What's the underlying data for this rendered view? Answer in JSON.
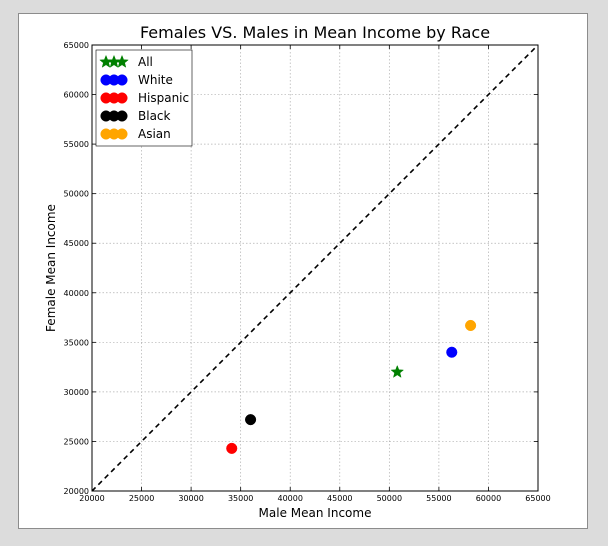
{
  "chart_data": {
    "type": "scatter",
    "title": "Females VS. Males in Mean Income by Race",
    "xlabel": "Male Mean Income",
    "ylabel": "Female Mean Income",
    "xlim": [
      20000,
      65000
    ],
    "ylim": [
      20000,
      65000
    ],
    "x_ticks": [
      "20000",
      "25000",
      "30000",
      "35000",
      "40000",
      "45000",
      "50000",
      "55000",
      "60000",
      "65000"
    ],
    "y_ticks": [
      "20000",
      "25000",
      "30000",
      "35000",
      "40000",
      "45000",
      "50000",
      "55000",
      "60000",
      "65000"
    ],
    "grid": true,
    "legend_position": "top-left",
    "reference_line": {
      "style": "dashed",
      "color": "#000000",
      "from": [
        20000,
        20000
      ],
      "to": [
        65000,
        65000
      ]
    },
    "series": [
      {
        "name": "All",
        "marker": "star",
        "color": "#008000",
        "x": 50800,
        "y": 32000
      },
      {
        "name": "White",
        "marker": "circle",
        "color": "#0000ff",
        "x": 56300,
        "y": 34000
      },
      {
        "name": "Hispanic",
        "marker": "circle",
        "color": "#ff0000",
        "x": 34100,
        "y": 24300
      },
      {
        "name": "Black",
        "marker": "circle",
        "color": "#000000",
        "x": 36000,
        "y": 27200
      },
      {
        "name": "Asian",
        "marker": "circle",
        "color": "#ffa500",
        "x": 58200,
        "y": 36700
      }
    ]
  }
}
